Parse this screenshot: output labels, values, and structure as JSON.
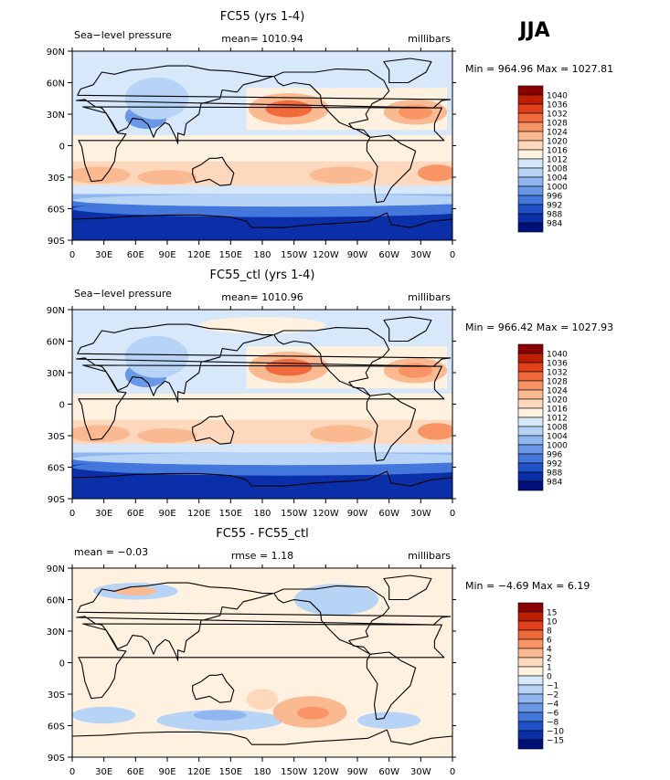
{
  "season": "JJA",
  "chart_data": [
    {
      "type": "heatmap",
      "title": "FC55 (yrs 1-4)",
      "left_label": "Sea−level pressure",
      "center_label": "mean= 1010.94",
      "right_label": "millibars",
      "stats": "Min = 964.96 Max = 1027.81",
      "x_ticks": [
        "0",
        "30E",
        "60E",
        "90E",
        "120E",
        "150E",
        "180",
        "150W",
        "120W",
        "90W",
        "60W",
        "30W",
        "0"
      ],
      "y_ticks": [
        "90N",
        "60N",
        "30N",
        "0",
        "30S",
        "60S",
        "90S"
      ],
      "xlim": [
        0,
        360
      ],
      "ylim": [
        -90,
        90
      ],
      "colorbar_labels": [
        "1040",
        "1036",
        "1032",
        "1028",
        "1024",
        "1020",
        "1016",
        "1012",
        "1008",
        "1004",
        "1000",
        "996",
        "992",
        "988",
        "984"
      ],
      "colorbar_colors": [
        "#8b0000",
        "#bf1e00",
        "#e2401a",
        "#f06a3c",
        "#f89466",
        "#fbb991",
        "#fdd8bc",
        "#fff1e0",
        "#d8e8fb",
        "#b7d3f6",
        "#8fb6ef",
        "#6a98e6",
        "#4477dc",
        "#2151c8",
        "#0a2fa8",
        "#00107a"
      ],
      "regions": [
        {
          "lon": 145,
          "lat": -75,
          "rx": 230,
          "ry": 22,
          "v": 986
        },
        {
          "lon": 200,
          "lat": -60,
          "rx": 200,
          "ry": 8,
          "v": 995
        },
        {
          "lon": 200,
          "lat": -52,
          "rx": 200,
          "ry": 6,
          "v": 1004
        },
        {
          "lon": 205,
          "lat": 35,
          "rx": 38,
          "ry": 15,
          "v": 1022
        },
        {
          "lon": 205,
          "lat": 35,
          "rx": 22,
          "ry": 8,
          "v": 1028
        },
        {
          "lon": 325,
          "lat": 32,
          "rx": 30,
          "ry": 12,
          "v": 1022
        },
        {
          "lon": 325,
          "lat": 32,
          "rx": 16,
          "ry": 7,
          "v": 1026
        },
        {
          "lon": 25,
          "lat": -28,
          "rx": 30,
          "ry": 8,
          "v": 1020
        },
        {
          "lon": 90,
          "lat": -30,
          "rx": 28,
          "ry": 7,
          "v": 1022
        },
        {
          "lon": 255,
          "lat": -28,
          "rx": 30,
          "ry": 8,
          "v": 1020
        },
        {
          "lon": 345,
          "lat": -26,
          "rx": 18,
          "ry": 8,
          "v": 1024
        },
        {
          "lon": 70,
          "lat": 28,
          "rx": 20,
          "ry": 12,
          "v": 998
        },
        {
          "lon": 80,
          "lat": 45,
          "rx": 30,
          "ry": 20,
          "v": 1006
        },
        {
          "lon": 180,
          "lat": 75,
          "rx": 60,
          "ry": 8,
          "v": 1010
        }
      ]
    },
    {
      "type": "heatmap",
      "title": "FC55_ctl (yrs 1-4)",
      "left_label": "Sea−level pressure",
      "center_label": "mean= 1010.96",
      "right_label": "millibars",
      "stats": "Min = 966.42 Max = 1027.93",
      "x_ticks": [
        "0",
        "30E",
        "60E",
        "90E",
        "120E",
        "150E",
        "180",
        "150W",
        "120W",
        "90W",
        "60W",
        "30W",
        "0"
      ],
      "y_ticks": [
        "90N",
        "60N",
        "30N",
        "0",
        "30S",
        "60S",
        "90S"
      ],
      "xlim": [
        0,
        360
      ],
      "ylim": [
        -90,
        90
      ],
      "colorbar_labels": [
        "1040",
        "1036",
        "1032",
        "1028",
        "1024",
        "1020",
        "1016",
        "1012",
        "1008",
        "1004",
        "1000",
        "996",
        "992",
        "988",
        "984"
      ],
      "colorbar_colors": [
        "#8b0000",
        "#bf1e00",
        "#e2401a",
        "#f06a3c",
        "#f89466",
        "#fbb991",
        "#fdd8bc",
        "#fff1e0",
        "#d8e8fb",
        "#b7d3f6",
        "#8fb6ef",
        "#6a98e6",
        "#4477dc",
        "#2151c8",
        "#0a2fa8",
        "#00107a"
      ],
      "regions": [
        {
          "lon": 145,
          "lat": -75,
          "rx": 230,
          "ry": 22,
          "v": 986
        },
        {
          "lon": 200,
          "lat": -60,
          "rx": 200,
          "ry": 8,
          "v": 995
        },
        {
          "lon": 200,
          "lat": -52,
          "rx": 200,
          "ry": 6,
          "v": 1004
        },
        {
          "lon": 205,
          "lat": 35,
          "rx": 38,
          "ry": 15,
          "v": 1022
        },
        {
          "lon": 205,
          "lat": 35,
          "rx": 22,
          "ry": 8,
          "v": 1028
        },
        {
          "lon": 325,
          "lat": 32,
          "rx": 30,
          "ry": 12,
          "v": 1022
        },
        {
          "lon": 325,
          "lat": 32,
          "rx": 16,
          "ry": 7,
          "v": 1026
        },
        {
          "lon": 25,
          "lat": -28,
          "rx": 30,
          "ry": 8,
          "v": 1020
        },
        {
          "lon": 90,
          "lat": -30,
          "rx": 28,
          "ry": 7,
          "v": 1022
        },
        {
          "lon": 255,
          "lat": -28,
          "rx": 30,
          "ry": 8,
          "v": 1020
        },
        {
          "lon": 345,
          "lat": -26,
          "rx": 18,
          "ry": 8,
          "v": 1024
        },
        {
          "lon": 70,
          "lat": 28,
          "rx": 20,
          "ry": 12,
          "v": 998
        },
        {
          "lon": 80,
          "lat": 45,
          "rx": 30,
          "ry": 20,
          "v": 1006
        },
        {
          "lon": 180,
          "lat": 75,
          "rx": 60,
          "ry": 8,
          "v": 1012
        }
      ]
    },
    {
      "type": "heatmap",
      "title": "FC55 - FC55_ctl",
      "left_label": "mean =   −0.03",
      "center_label": "rmse =    1.18",
      "right_label": "millibars",
      "stats": "Min =  −4.69 Max =    6.19",
      "x_ticks": [
        "0",
        "30E",
        "60E",
        "90E",
        "120E",
        "150E",
        "180",
        "150W",
        "120W",
        "90W",
        "60W",
        "30W",
        "0"
      ],
      "y_ticks": [
        "90N",
        "60N",
        "30N",
        "0",
        "30S",
        "60S",
        "90S"
      ],
      "xlim": [
        0,
        360
      ],
      "ylim": [
        -90,
        90
      ],
      "colorbar_labels": [
        "15",
        "10",
        "8",
        "6",
        "4",
        "2",
        "1",
        "0",
        "−1",
        "−2",
        "−4",
        "−6",
        "−8",
        "−10",
        "−15"
      ],
      "colorbar_colors": [
        "#8b0000",
        "#bf1e00",
        "#e2401a",
        "#f06a3c",
        "#f89466",
        "#fbb991",
        "#fdd8bc",
        "#fff1e0",
        "#d8e8fb",
        "#b7d3f6",
        "#8fb6ef",
        "#6a98e6",
        "#4477dc",
        "#2151c8",
        "#0a2fa8",
        "#00107a"
      ],
      "regions": [
        {
          "lon": 60,
          "lat": 68,
          "rx": 40,
          "ry": 8,
          "v": -1.5
        },
        {
          "lon": 60,
          "lat": 68,
          "rx": 20,
          "ry": 4,
          "v": 2.5
        },
        {
          "lon": 140,
          "lat": -55,
          "rx": 60,
          "ry": 10,
          "v": -1.5
        },
        {
          "lon": 140,
          "lat": -50,
          "rx": 25,
          "ry": 5,
          "v": -3
        },
        {
          "lon": 225,
          "lat": -47,
          "rx": 35,
          "ry": 15,
          "v": 2.5
        },
        {
          "lon": 228,
          "lat": -48,
          "rx": 15,
          "ry": 6,
          "v": 5
        },
        {
          "lon": 180,
          "lat": -35,
          "rx": 15,
          "ry": 10,
          "v": 1.5
        },
        {
          "lon": 300,
          "lat": -55,
          "rx": 30,
          "ry": 8,
          "v": -1.5
        },
        {
          "lon": 150,
          "lat": 20,
          "rx": 30,
          "ry": 10,
          "v": 0.5
        },
        {
          "lon": 250,
          "lat": 60,
          "rx": 40,
          "ry": 15,
          "v": -1.2
        },
        {
          "lon": 30,
          "lat": -50,
          "rx": 30,
          "ry": 8,
          "v": -1.2
        }
      ]
    }
  ]
}
